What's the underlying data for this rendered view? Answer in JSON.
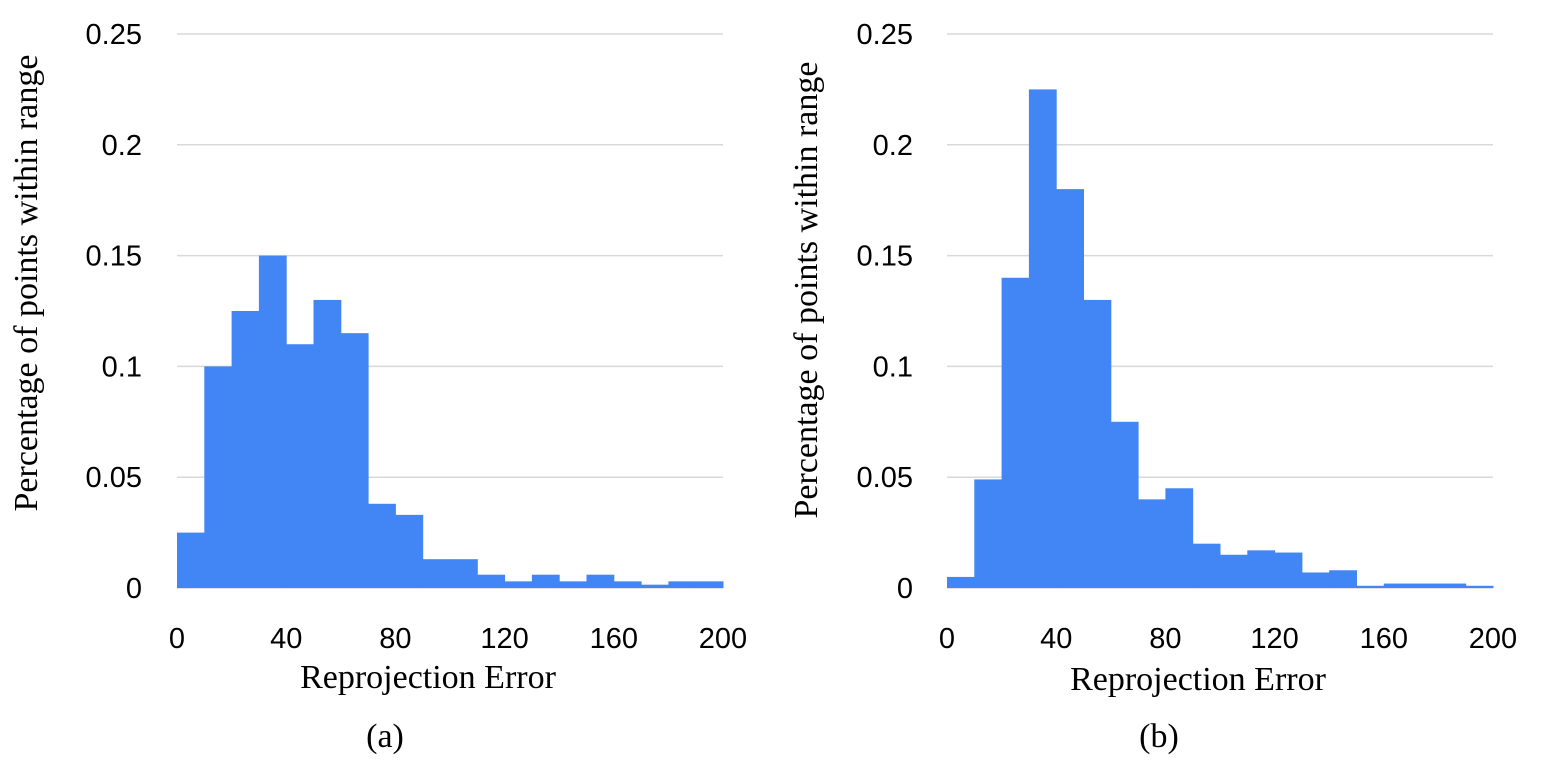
{
  "chart_data": [
    {
      "type": "bar",
      "panel_label": "(a)",
      "xlabel": "Reprojection Error",
      "ylabel": "Percentage of points within range",
      "xlim": [
        0,
        200
      ],
      "ylim": [
        0,
        0.25
      ],
      "x_ticks": [
        "0",
        "40",
        "80",
        "120",
        "160",
        "200"
      ],
      "y_ticks": [
        "0",
        "0.05",
        "0.1",
        "0.15",
        "0.2",
        "0.25"
      ],
      "grid": true,
      "bar_color": "#4285f4",
      "bin_width": 10,
      "categories": [
        "0",
        "10",
        "20",
        "30",
        "40",
        "50",
        "60",
        "70",
        "80",
        "90",
        "100",
        "110",
        "120",
        "130",
        "140",
        "150",
        "160",
        "170",
        "180",
        "190"
      ],
      "values": [
        0.025,
        0.1,
        0.125,
        0.15,
        0.11,
        0.13,
        0.115,
        0.038,
        0.033,
        0.013,
        0.013,
        0.006,
        0.003,
        0.006,
        0.003,
        0.006,
        0.003,
        0.0015,
        0.003,
        0.003
      ]
    },
    {
      "type": "bar",
      "panel_label": "(b)",
      "xlabel": "Reprojection Error",
      "ylabel": "Percentage of points within range",
      "xlim": [
        0,
        200
      ],
      "ylim": [
        0,
        0.25
      ],
      "x_ticks": [
        "0",
        "40",
        "80",
        "120",
        "160",
        "200"
      ],
      "y_ticks": [
        "0",
        "0.05",
        "0.1",
        "0.15",
        "0.2",
        "0.25"
      ],
      "grid": true,
      "bar_color": "#4285f4",
      "bin_width": 10,
      "categories": [
        "0",
        "10",
        "20",
        "30",
        "40",
        "50",
        "60",
        "70",
        "80",
        "90",
        "100",
        "110",
        "120",
        "130",
        "140",
        "150",
        "160",
        "170",
        "180",
        "190"
      ],
      "values": [
        0.005,
        0.049,
        0.14,
        0.225,
        0.18,
        0.13,
        0.075,
        0.04,
        0.045,
        0.02,
        0.015,
        0.017,
        0.016,
        0.007,
        0.008,
        0.001,
        0.002,
        0.002,
        0.002,
        0.001
      ]
    }
  ]
}
